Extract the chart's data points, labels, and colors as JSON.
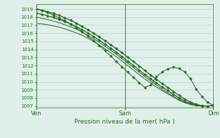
{
  "bg_color": "#dff0ea",
  "grid_color": "#b8d8cc",
  "line_color": "#2d6a2d",
  "xlabel": "Pression niveau de la mer( hPa )",
  "xtick_labels": [
    "Ven",
    "Sam",
    "Dim"
  ],
  "xtick_positions": [
    0,
    48,
    96
  ],
  "ylim": [
    1006.8,
    1019.6
  ],
  "yticks": [
    1007,
    1008,
    1009,
    1010,
    1011,
    1012,
    1013,
    1014,
    1015,
    1016,
    1017,
    1018,
    1019
  ],
  "xlim": [
    0,
    96
  ],
  "smooth_series": [
    [
      1019.0,
      1018.85,
      1018.65,
      1018.45,
      1018.2,
      1017.9,
      1017.6,
      1017.25,
      1016.85,
      1016.45,
      1016.0,
      1015.55,
      1015.1,
      1014.6,
      1014.1,
      1013.6,
      1013.05,
      1012.5,
      1011.95,
      1011.4,
      1010.85,
      1010.3,
      1009.8,
      1009.3,
      1008.8,
      1008.3,
      1007.85,
      1007.5,
      1007.2,
      1007.05,
      1007.0,
      1007.05
    ],
    [
      1018.5,
      1018.35,
      1018.15,
      1017.95,
      1017.7,
      1017.45,
      1017.15,
      1016.8,
      1016.45,
      1016.05,
      1015.6,
      1015.15,
      1014.65,
      1014.15,
      1013.65,
      1013.1,
      1012.55,
      1012.0,
      1011.45,
      1010.9,
      1010.35,
      1009.85,
      1009.35,
      1008.9,
      1008.45,
      1008.0,
      1007.6,
      1007.3,
      1007.1,
      1007.0,
      1007.0,
      1007.05
    ],
    [
      1018.0,
      1017.85,
      1017.7,
      1017.5,
      1017.3,
      1017.05,
      1016.8,
      1016.5,
      1016.15,
      1015.75,
      1015.35,
      1014.9,
      1014.4,
      1013.9,
      1013.4,
      1012.85,
      1012.3,
      1011.75,
      1011.2,
      1010.65,
      1010.1,
      1009.6,
      1009.1,
      1008.65,
      1008.2,
      1007.8,
      1007.45,
      1007.2,
      1007.05,
      1007.0,
      1007.0,
      1007.05
    ],
    [
      1017.2,
      1017.15,
      1017.05,
      1016.9,
      1016.75,
      1016.55,
      1016.3,
      1016.05,
      1015.75,
      1015.4,
      1015.0,
      1014.55,
      1014.1,
      1013.6,
      1013.1,
      1012.55,
      1012.0,
      1011.45,
      1010.9,
      1010.35,
      1009.85,
      1009.35,
      1008.9,
      1008.5,
      1008.1,
      1007.7,
      1007.4,
      1007.2,
      1007.05,
      1007.0,
      1007.0,
      1007.05
    ]
  ],
  "marked_series": [
    [
      1019.0,
      1018.85,
      1018.65,
      1018.45,
      1018.2,
      1017.9,
      1017.6,
      1017.25,
      1016.85,
      1016.45,
      1016.0,
      1015.55,
      1015.1,
      1014.6,
      1014.1,
      1013.6,
      1013.05,
      1012.5,
      1011.95,
      1011.4,
      1010.85,
      1010.3,
      1009.8,
      1009.3,
      1008.8,
      1008.3,
      1007.85,
      1007.5,
      1007.2,
      1007.05,
      1007.0,
      1007.05
    ],
    [
      1018.5,
      1018.35,
      1018.15,
      1017.95,
      1017.7,
      1017.45,
      1017.15,
      1016.8,
      1016.45,
      1016.05,
      1015.6,
      1015.15,
      1014.65,
      1014.15,
      1013.65,
      1013.1,
      1012.55,
      1012.0,
      1011.45,
      1010.9,
      1010.35,
      1009.85,
      1009.35,
      1008.9,
      1008.45,
      1008.0,
      1007.6,
      1007.3,
      1007.1,
      1007.0,
      1007.0,
      1007.05
    ]
  ],
  "bumpy_series": [
    [
      1019.0,
      1018.8,
      1018.55,
      1018.25,
      1017.9,
      1017.55,
      1017.15,
      1016.7,
      1016.2,
      1015.65,
      1015.1,
      1014.5,
      1013.85,
      1013.2,
      1012.5,
      1011.85,
      1011.2,
      1010.55,
      1009.9,
      1009.3,
      1009.6,
      1010.6,
      1011.2,
      1011.6,
      1011.8,
      1011.65,
      1011.2,
      1010.35,
      1009.1,
      1008.15,
      1007.45,
      1007.1
    ]
  ]
}
